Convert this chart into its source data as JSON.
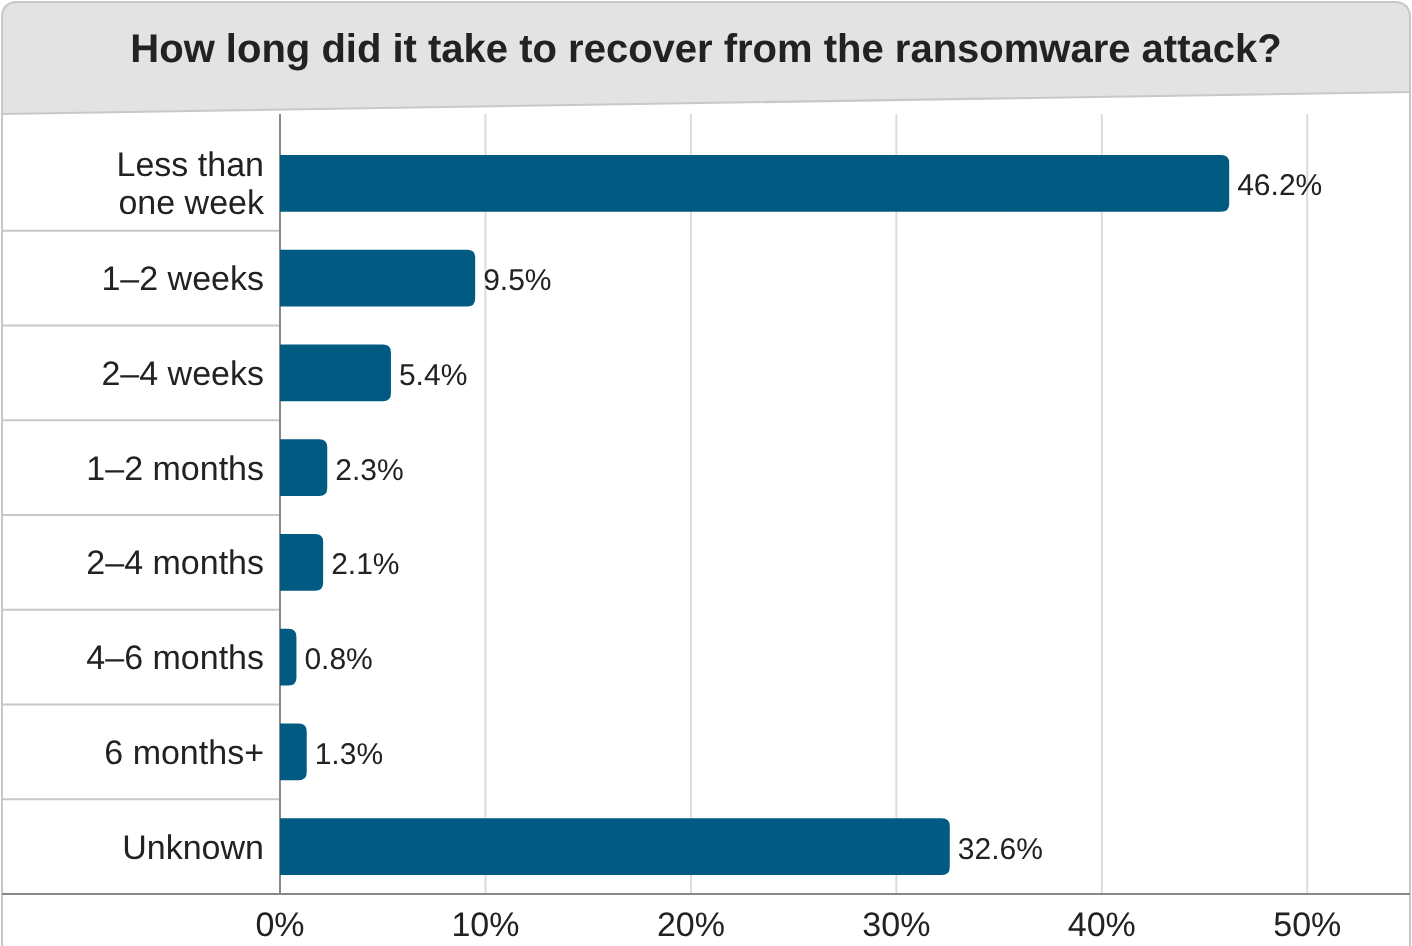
{
  "chart_data": {
    "type": "bar",
    "orientation": "horizontal",
    "title": "How long did it take to recover from the ransomware attack?",
    "categories": [
      "Less than one week",
      "1–2 weeks",
      "2–4 weeks",
      "1–2 months",
      "2–4 months",
      "4–6 months",
      "6 months+",
      "Unknown"
    ],
    "values": [
      46.2,
      9.5,
      5.4,
      2.3,
      2.1,
      0.8,
      1.3,
      32.6
    ],
    "value_labels": [
      "46.2%",
      "9.5%",
      "5.4%",
      "2.3%",
      "2.1%",
      "0.8%",
      "1.3%",
      "32.6%"
    ],
    "color": "#005a82",
    "xlim": [
      0,
      55
    ],
    "xticks": [
      {
        "value": 0,
        "label": "0%"
      },
      {
        "value": 10,
        "label": "10%"
      },
      {
        "value": 20,
        "label": "20%"
      },
      {
        "value": 30,
        "label": "30%"
      },
      {
        "value": 40,
        "label": "40%"
      },
      {
        "value": 50,
        "label": "50%"
      }
    ],
    "grid": "x"
  }
}
